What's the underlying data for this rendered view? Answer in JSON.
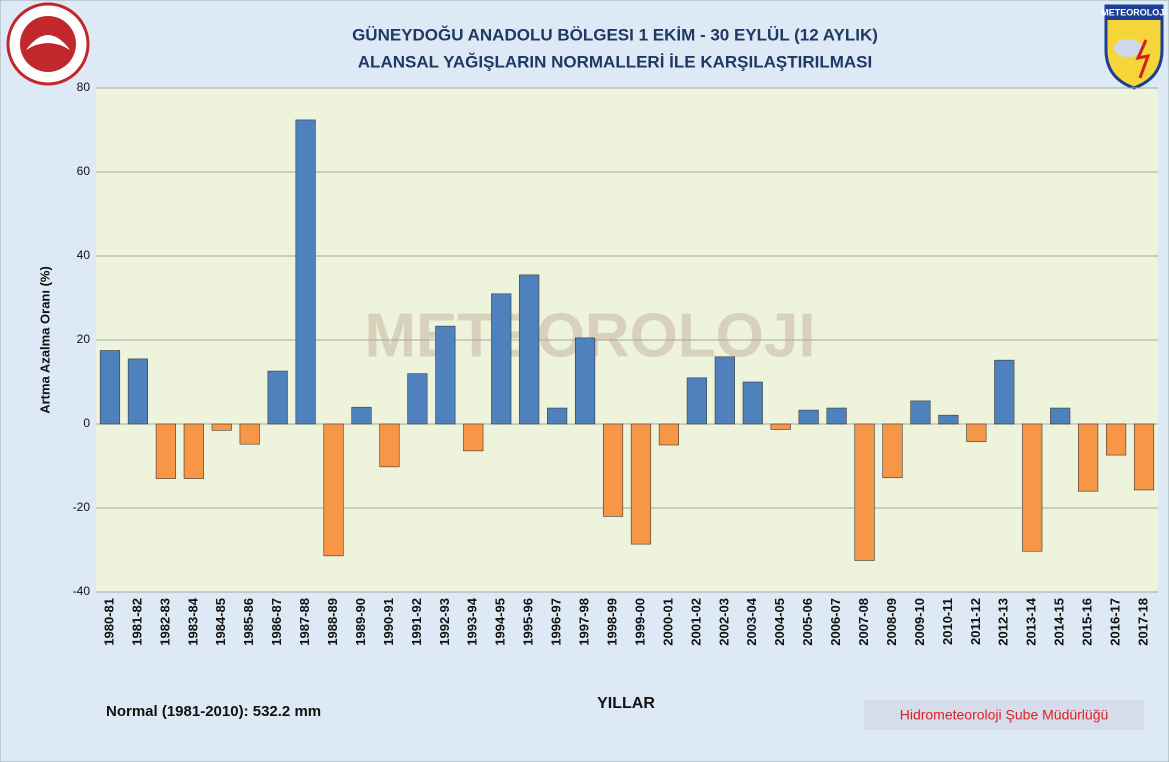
{
  "chart_data": {
    "type": "bar",
    "title": "GÜNEYDOĞU ANADOLU BÖLGESI  1 EKİM - 30 EYLÜL (12 AYLIK)",
    "subtitle": "ALANSAL YAĞIŞLARIN NORMALLERİ İLE KARŞILAŞTIRILMASI",
    "y_label": "Artma Azalma Oranı (%)",
    "x_label": "YILLAR",
    "note": "Normal (1981-2010): 532.2 mm",
    "footer": "Hidrometeoroloji  Şube  Müdürlüğü",
    "logo_text": "METEOROLOJI",
    "categories": [
      "1980-81",
      "1981-82",
      "1982-83",
      "1983-84",
      "1984-85",
      "1985-86",
      "1986-87",
      "1987-88",
      "1988-89",
      "1989-90",
      "1990-91",
      "1991-92",
      "1992-93",
      "1993-94",
      "1994-95",
      "1995-96",
      "1996-97",
      "1997-98",
      "1998-99",
      "1999-00",
      "2000-01",
      "2001-02",
      "2002-03",
      "2003-04",
      "2004-05",
      "2005-06",
      "2006-07",
      "2007-08",
      "2008-09",
      "2009-10",
      "2010-11",
      "2011-12",
      "2012-13",
      "2013-14",
      "2014-15",
      "2015-16",
      "2016-17",
      "2017-18"
    ],
    "values": [
      17.5,
      15.5,
      -13,
      -13,
      -1.5,
      -4.8,
      12.6,
      72.4,
      -31.4,
      4,
      -10.2,
      12,
      23.3,
      -6.4,
      31,
      35.5,
      3.8,
      20.5,
      -22,
      -28.6,
      -5,
      11,
      16,
      10,
      -1.3,
      3.3,
      3.8,
      -32.5,
      -12.8,
      5.5,
      2.1,
      -4.2,
      15.2,
      -30.3,
      3.8,
      -16,
      -7.4,
      -15.7
    ],
    "color_positive": "#4f81bd",
    "color_negative": "#f79646",
    "ylim": [
      -40,
      80
    ],
    "yticks": [
      -40,
      -20,
      0,
      20,
      40,
      60,
      80
    ],
    "grid": true
  }
}
